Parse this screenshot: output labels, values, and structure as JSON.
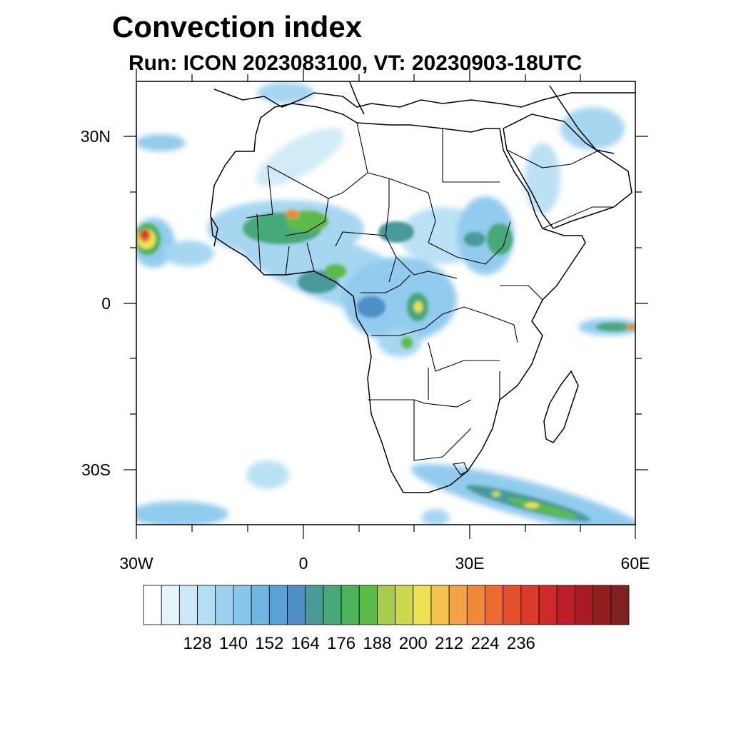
{
  "title": "Convection index",
  "subtitle": "Run: ICON 2023083100,  VT: 20230903-18UTC",
  "map": {
    "projection": "cylindrical equidistant",
    "lon_range": [
      -30,
      60
    ],
    "lat_range": [
      -40,
      40
    ],
    "lat_labels": [
      "30N",
      "0",
      "30S"
    ],
    "lon_labels": [
      "30W",
      "0",
      "30E",
      "60E"
    ]
  },
  "colorbar": {
    "colors": [
      "#ffffff",
      "#e6f3fb",
      "#cde9f7",
      "#b4def3",
      "#9cd2ef",
      "#85c6eb",
      "#6fb6e3",
      "#5ba2d8",
      "#4f8fc8",
      "#4a9a9a",
      "#47a87a",
      "#4ab45a",
      "#5cbc4a",
      "#a8cc4c",
      "#cdd84e",
      "#ede252",
      "#f5c24d",
      "#f4a245",
      "#f08838",
      "#ec6a30",
      "#e4502b",
      "#dc3a2a",
      "#cf2a2b",
      "#bd1e2a",
      "#a81a24",
      "#941e1e",
      "#802020"
    ],
    "tick_labels": [
      "128",
      "140",
      "152",
      "164",
      "176",
      "188",
      "200",
      "212",
      "224",
      "236"
    ]
  }
}
